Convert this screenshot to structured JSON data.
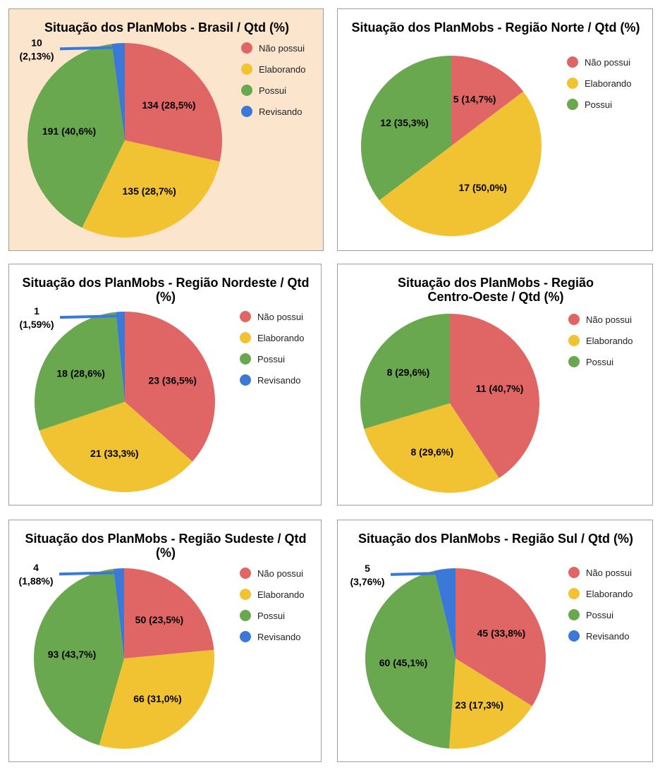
{
  "colors": {
    "Não possui": "#e06666",
    "Elaborando": "#f1c232",
    "Possui": "#6aa84f",
    "Revisando": "#3c78d8",
    "highlight_bg": "#fce5cd"
  },
  "chart_data": [
    {
      "type": "pie",
      "title": "Situação dos PlanMobs - Brasil / Qtd (%)",
      "legend": "right",
      "categories": [
        "Não possui",
        "Elaborando",
        "Possui",
        "Revisando"
      ],
      "values": [
        134,
        135,
        191,
        10
      ],
      "labels": [
        "134 (28,5%)",
        "135 (28,7%)",
        "191 (40,6%)",
        "10 (2,13%)"
      ]
    },
    {
      "type": "pie",
      "title": "Situação dos PlanMobs - Região Norte / Qtd (%)",
      "legend": "right",
      "categories": [
        "Não possui",
        "Elaborando",
        "Possui"
      ],
      "values": [
        5,
        17,
        12
      ],
      "labels": [
        "5 (14,7%)",
        "17 (50,0%)",
        "12 (35,3%)"
      ]
    },
    {
      "type": "pie",
      "title": "Situação dos PlanMobs - Região Nordeste / Qtd (%)",
      "legend": "right",
      "categories": [
        "Não possui",
        "Elaborando",
        "Possui",
        "Revisando"
      ],
      "values": [
        23,
        21,
        18,
        1
      ],
      "labels": [
        "23 (36,5%)",
        "21 (33,3%)",
        "18 (28,6%)",
        "1 (1,59%)"
      ]
    },
    {
      "type": "pie",
      "title": "Situação dos PlanMobs - Região Centro-Oeste / Qtd (%)",
      "legend": "right",
      "categories": [
        "Não possui",
        "Elaborando",
        "Possui"
      ],
      "values": [
        11,
        8,
        8
      ],
      "labels": [
        "11 (40,7%)",
        "8 (29,6%)",
        "8 (29,6%)"
      ]
    },
    {
      "type": "pie",
      "title": "Situação dos PlanMobs - Região Sudeste / Qtd (%)",
      "legend": "right",
      "categories": [
        "Não possui",
        "Elaborando",
        "Possui",
        "Revisando"
      ],
      "values": [
        50,
        66,
        93,
        4
      ],
      "labels": [
        "50 (23,5%)",
        "66 (31,0%)",
        "93 (43,7%)",
        "4 (1,88%)"
      ]
    },
    {
      "type": "pie",
      "title": "Situação dos PlanMobs - Região Sul / Qtd (%)",
      "legend": "right",
      "categories": [
        "Não possui",
        "Elaborando",
        "Possui",
        "Revisando"
      ],
      "values": [
        45,
        23,
        60,
        5
      ],
      "labels": [
        "45 (33,8%)",
        "23 (17,3%)",
        "60 (45,1%)",
        "5 (3,76%)"
      ]
    }
  ]
}
